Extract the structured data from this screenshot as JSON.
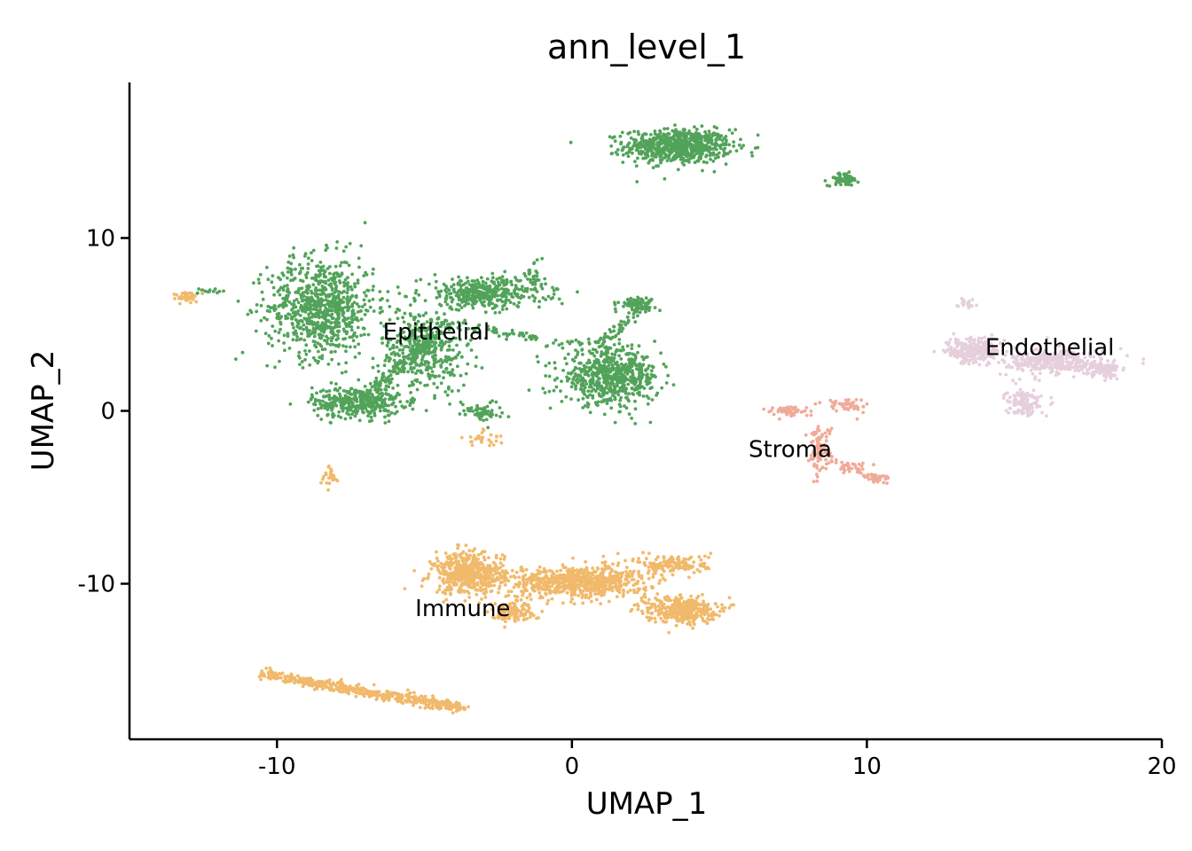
{
  "chart_data": {
    "type": "scatter",
    "title": "ann_level_1",
    "xlabel": "UMAP_1",
    "ylabel": "UMAP_2",
    "xlim": [
      -15,
      20
    ],
    "ylim": [
      -19,
      19
    ],
    "xticks": [
      -10,
      0,
      10,
      20
    ],
    "xtick_labels": [
      "-10",
      "0",
      "10",
      "20"
    ],
    "yticks": [
      -10,
      0,
      10
    ],
    "ytick_labels": [
      "-10",
      "0",
      "10"
    ],
    "grid": false,
    "legend": "none",
    "colors": {
      "Epithelial": "#52a35a",
      "Immune": "#f1b96b",
      "Stroma": "#f0ab98",
      "Endothelial": "#e6cfdc"
    },
    "cluster_labels": [
      {
        "text": "Epithelial",
        "x": -4.6,
        "y": 4.6
      },
      {
        "text": "Endothelial",
        "x": 16.2,
        "y": 3.7
      },
      {
        "text": "Stroma",
        "x": 7.4,
        "y": -2.2
      },
      {
        "text": "Immune",
        "x": -3.7,
        "y": -11.4
      }
    ],
    "clusters": [
      {
        "series": "Epithelial",
        "cx": 3.6,
        "cy": 15.3,
        "sx": 1.2,
        "sy": 0.65,
        "n": 700
      },
      {
        "series": "Epithelial",
        "cx": 9.2,
        "cy": 13.4,
        "sx": 0.35,
        "sy": 0.25,
        "n": 70
      },
      {
        "series": "Epithelial",
        "cx": -8.5,
        "cy": 6.0,
        "sx": 1.2,
        "sy": 1.9,
        "n": 800
      },
      {
        "series": "Epithelial",
        "cx": -7.3,
        "cy": 0.5,
        "sx": 1.0,
        "sy": 0.6,
        "n": 350
      },
      {
        "series": "Epithelial",
        "cx": -5.0,
        "cy": 3.5,
        "sx": 1.0,
        "sy": 1.6,
        "n": 400
      },
      {
        "series": "Epithelial",
        "cx": -3.0,
        "cy": 6.8,
        "sx": 1.4,
        "sy": 0.6,
        "n": 400
      },
      {
        "series": "Epithelial",
        "cx": -1.3,
        "cy": 7.8,
        "sx": 0.2,
        "sy": 0.6,
        "n": 30
      },
      {
        "series": "Epithelial",
        "cx": 1.3,
        "cy": 1.9,
        "sx": 1.1,
        "sy": 1.0,
        "n": 600
      },
      {
        "series": "Epithelial",
        "cx": 2.2,
        "cy": 6.2,
        "sx": 0.4,
        "sy": 0.25,
        "n": 80
      },
      {
        "series": "Epithelial",
        "cx": -3.1,
        "cy": 0.0,
        "sx": 0.5,
        "sy": 0.4,
        "n": 60
      },
      {
        "series": "Epithelial",
        "cx": -12.3,
        "cy": 6.9,
        "sx": 0.25,
        "sy": 0.15,
        "n": 15
      },
      {
        "series": "Immune",
        "cx": -13.0,
        "cy": 6.6,
        "sx": 0.3,
        "sy": 0.2,
        "n": 40
      },
      {
        "series": "Immune",
        "cx": -3.0,
        "cy": -1.6,
        "sx": 0.4,
        "sy": 0.3,
        "n": 30
      },
      {
        "series": "Immune",
        "cx": -8.2,
        "cy": -3.9,
        "sx": 0.2,
        "sy": 0.5,
        "n": 25
      },
      {
        "series": "Immune",
        "cx": -3.5,
        "cy": -9.4,
        "sx": 0.8,
        "sy": 0.8,
        "n": 500
      },
      {
        "series": "Immune",
        "cx": 0.2,
        "cy": -9.9,
        "sx": 1.6,
        "sy": 0.6,
        "n": 700
      },
      {
        "series": "Immune",
        "cx": 3.5,
        "cy": -8.9,
        "sx": 0.8,
        "sy": 0.4,
        "n": 150
      },
      {
        "series": "Immune",
        "cx": 3.7,
        "cy": -11.5,
        "sx": 0.8,
        "sy": 0.5,
        "n": 350
      },
      {
        "series": "Immune",
        "cx": -2.0,
        "cy": -11.6,
        "sx": 0.5,
        "sy": 0.4,
        "n": 120
      },
      {
        "series": "Stroma",
        "cx": 7.3,
        "cy": 0.0,
        "sx": 0.5,
        "sy": 0.2,
        "n": 60
      },
      {
        "series": "Stroma",
        "cx": 9.3,
        "cy": 0.3,
        "sx": 0.5,
        "sy": 0.3,
        "n": 50
      },
      {
        "series": "Stroma",
        "cx": 8.4,
        "cy": -2.2,
        "sx": 0.25,
        "sy": 0.9,
        "n": 90
      },
      {
        "series": "Stroma",
        "cx": 9.6,
        "cy": -3.3,
        "sx": 0.4,
        "sy": 0.3,
        "n": 20
      },
      {
        "series": "Stroma",
        "cx": 10.3,
        "cy": -3.9,
        "sx": 0.3,
        "sy": 0.15,
        "n": 25
      },
      {
        "series": "Endothelial",
        "cx": 13.6,
        "cy": 3.5,
        "sx": 0.6,
        "sy": 0.5,
        "n": 250
      },
      {
        "series": "Endothelial",
        "cx": 16.5,
        "cy": 2.8,
        "sx": 1.2,
        "sy": 0.5,
        "n": 350
      },
      {
        "series": "Endothelial",
        "cx": 15.3,
        "cy": 0.5,
        "sx": 0.4,
        "sy": 0.5,
        "n": 120
      },
      {
        "series": "Endothelial",
        "cx": 18.1,
        "cy": 2.4,
        "sx": 0.3,
        "sy": 0.3,
        "n": 80
      },
      {
        "series": "Endothelial",
        "cx": 13.4,
        "cy": 6.2,
        "sx": 0.2,
        "sy": 0.2,
        "n": 20
      }
    ],
    "trails": [
      {
        "series": "Epithelial",
        "x": [
          -4.5,
          1.8
        ],
        "y": [
          5.1,
          3.4
        ],
        "n": 100
      },
      {
        "series": "Epithelial",
        "x": [
          1.0,
          2.5
        ],
        "y": [
          3.9,
          6.2
        ],
        "n": 50
      },
      {
        "series": "Epithelial",
        "x": [
          -7.2,
          -4.5
        ],
        "y": [
          0.5,
          4.5
        ],
        "n": 150
      },
      {
        "series": "Immune",
        "x": [
          -10.5,
          -3.7
        ],
        "y": [
          -15.2,
          -17.2
        ],
        "n": 450
      },
      {
        "series": "Stroma",
        "x": [
          8.6,
          10.6
        ],
        "y": [
          -2.8,
          -4.0
        ],
        "n": 30
      }
    ]
  }
}
